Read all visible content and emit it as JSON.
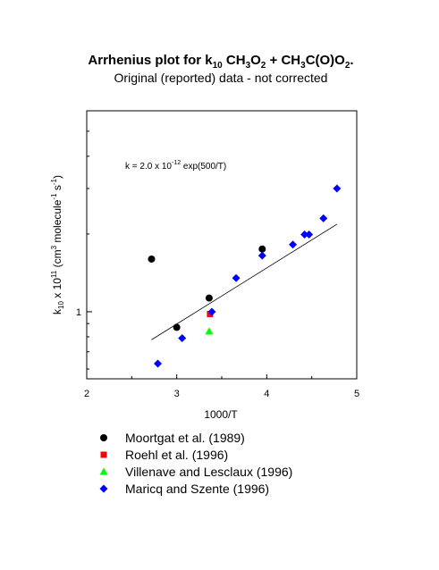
{
  "chart_data": {
    "type": "scatter",
    "title_prefix": "Arrhenius plot for k",
    "title_sub10": "10",
    "title_sp1": " CH",
    "title_sub3a": "3",
    "title_o2a": "O",
    "title_sub2a": "2",
    "title_plus": " + CH",
    "title_sub3b": "3",
    "title_co": "C(O)O",
    "title_sub2b": "2",
    "title_dot": ".",
    "subtitle": "Original (reported) data - not corrected",
    "xlabel": "1000/T",
    "ylabel_k": "k",
    "ylabel_sub10": "10",
    "ylabel_x10": " x 10",
    "ylabel_sup11": "11",
    "ylabel_units1": " (cm",
    "ylabel_sup3": "3",
    "ylabel_units2": " molecule",
    "ylabel_supm1a": "-1",
    "ylabel_units3": " s",
    "ylabel_supm1b": "-1",
    "ylabel_close": ")",
    "annotation_k": "k = 2.0 x 10",
    "annotation_sup": "-12",
    "annotation_exp": " exp(500/T)",
    "xlim": [
      2,
      5
    ],
    "ylim": [
      0.55,
      6.0
    ],
    "yscale": "log",
    "xticks": [
      2,
      3,
      4,
      5
    ],
    "xtick_labels": [
      "2",
      "3",
      "4",
      "5"
    ],
    "ytick_labels": [
      {
        "value": 1,
        "label": "1"
      }
    ],
    "fit": {
      "A": 2e-12,
      "Ea_R": 500,
      "x_range": [
        2.72,
        4.78
      ],
      "scale": 100000000000.0
    },
    "series": [
      {
        "name": "Moortgat et al. (1989)",
        "marker": "circle",
        "color": "#000000",
        "points": [
          [
            2.72,
            1.6
          ],
          [
            3.0,
            0.87
          ],
          [
            3.36,
            1.13
          ],
          [
            3.95,
            1.75
          ]
        ]
      },
      {
        "name": "Roehl et al. (1996)",
        "marker": "square",
        "color": "#ff0000",
        "points": [
          [
            3.37,
            0.98
          ]
        ]
      },
      {
        "name": "Villenave and Lesclaux (1996)",
        "marker": "triangle",
        "color": "#00ff00",
        "points": [
          [
            3.36,
            0.84
          ]
        ]
      },
      {
        "name": "Maricq and Szente (1996)",
        "marker": "diamond",
        "color": "#0000ff",
        "points": [
          [
            2.79,
            0.63
          ],
          [
            3.06,
            0.79
          ],
          [
            3.39,
            1.0
          ],
          [
            3.66,
            1.35
          ],
          [
            3.95,
            1.65
          ],
          [
            4.29,
            1.82
          ],
          [
            4.42,
            1.99
          ],
          [
            4.47,
            1.99
          ],
          [
            4.63,
            2.3
          ],
          [
            4.78,
            3.0
          ]
        ]
      }
    ]
  }
}
